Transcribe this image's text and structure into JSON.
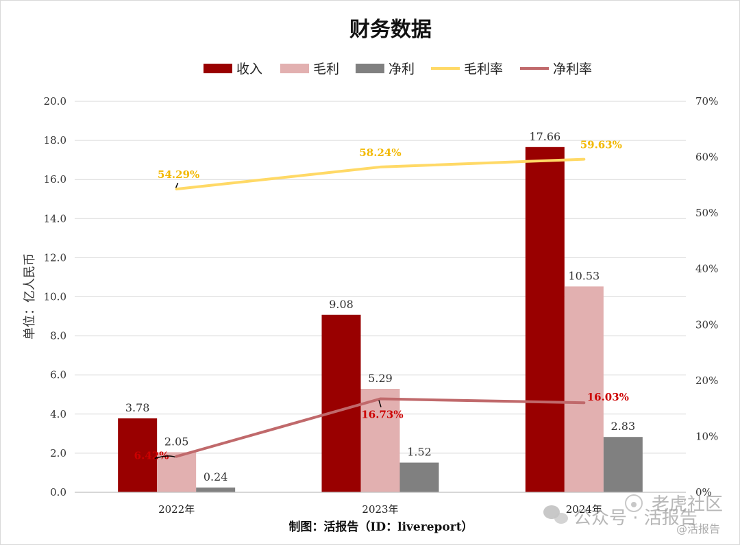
{
  "chart_data": {
    "type": "bar",
    "title": "财务数据",
    "categories": [
      "2022年",
      "2023年",
      "2024年"
    ],
    "ylabel": "单位：亿人民币",
    "ylim": [
      0,
      20
    ],
    "y_ticks": [
      "0.0",
      "2.0",
      "4.0",
      "6.0",
      "8.0",
      "10.0",
      "12.0",
      "14.0",
      "16.0",
      "18.0",
      "20.0"
    ],
    "y2lim": [
      0,
      70
    ],
    "y2_ticks": [
      "0%",
      "10%",
      "20%",
      "30%",
      "40%",
      "50%",
      "60%",
      "70%"
    ],
    "grid": true,
    "legend_position": "top",
    "series": [
      {
        "name": "收入",
        "kind": "bar",
        "color": "#990000",
        "values": [
          3.78,
          9.08,
          17.66
        ],
        "labels": [
          "3.78",
          "9.08",
          "17.66"
        ]
      },
      {
        "name": "毛利",
        "kind": "bar",
        "color": "#e2b0b0",
        "values": [
          2.05,
          5.29,
          10.53
        ],
        "labels": [
          "2.05",
          "5.29",
          "10.53"
        ]
      },
      {
        "name": "净利",
        "kind": "bar",
        "color": "#808080",
        "values": [
          0.24,
          1.52,
          2.83
        ],
        "labels": [
          "0.24",
          "1.52",
          "2.83"
        ]
      },
      {
        "name": "毛利率",
        "kind": "line",
        "axis": "right",
        "color": "#ffd966",
        "label_color": "#f2b800",
        "values": [
          54.29,
          58.24,
          59.63
        ],
        "labels": [
          "54.29%",
          "58.24%",
          "59.63%"
        ]
      },
      {
        "name": "净利率",
        "kind": "line",
        "axis": "right",
        "color": "#c0696b",
        "label_color": "#cc0000",
        "values": [
          6.42,
          16.73,
          16.03
        ],
        "labels": [
          "6.42%",
          "16.73%",
          "16.03%"
        ]
      }
    ],
    "source_note": "制图：活报告（ID：livereport）"
  },
  "watermark": {
    "account": "老虎社区",
    "channel": "公众号 · 活报告",
    "handle": "@活报告"
  }
}
